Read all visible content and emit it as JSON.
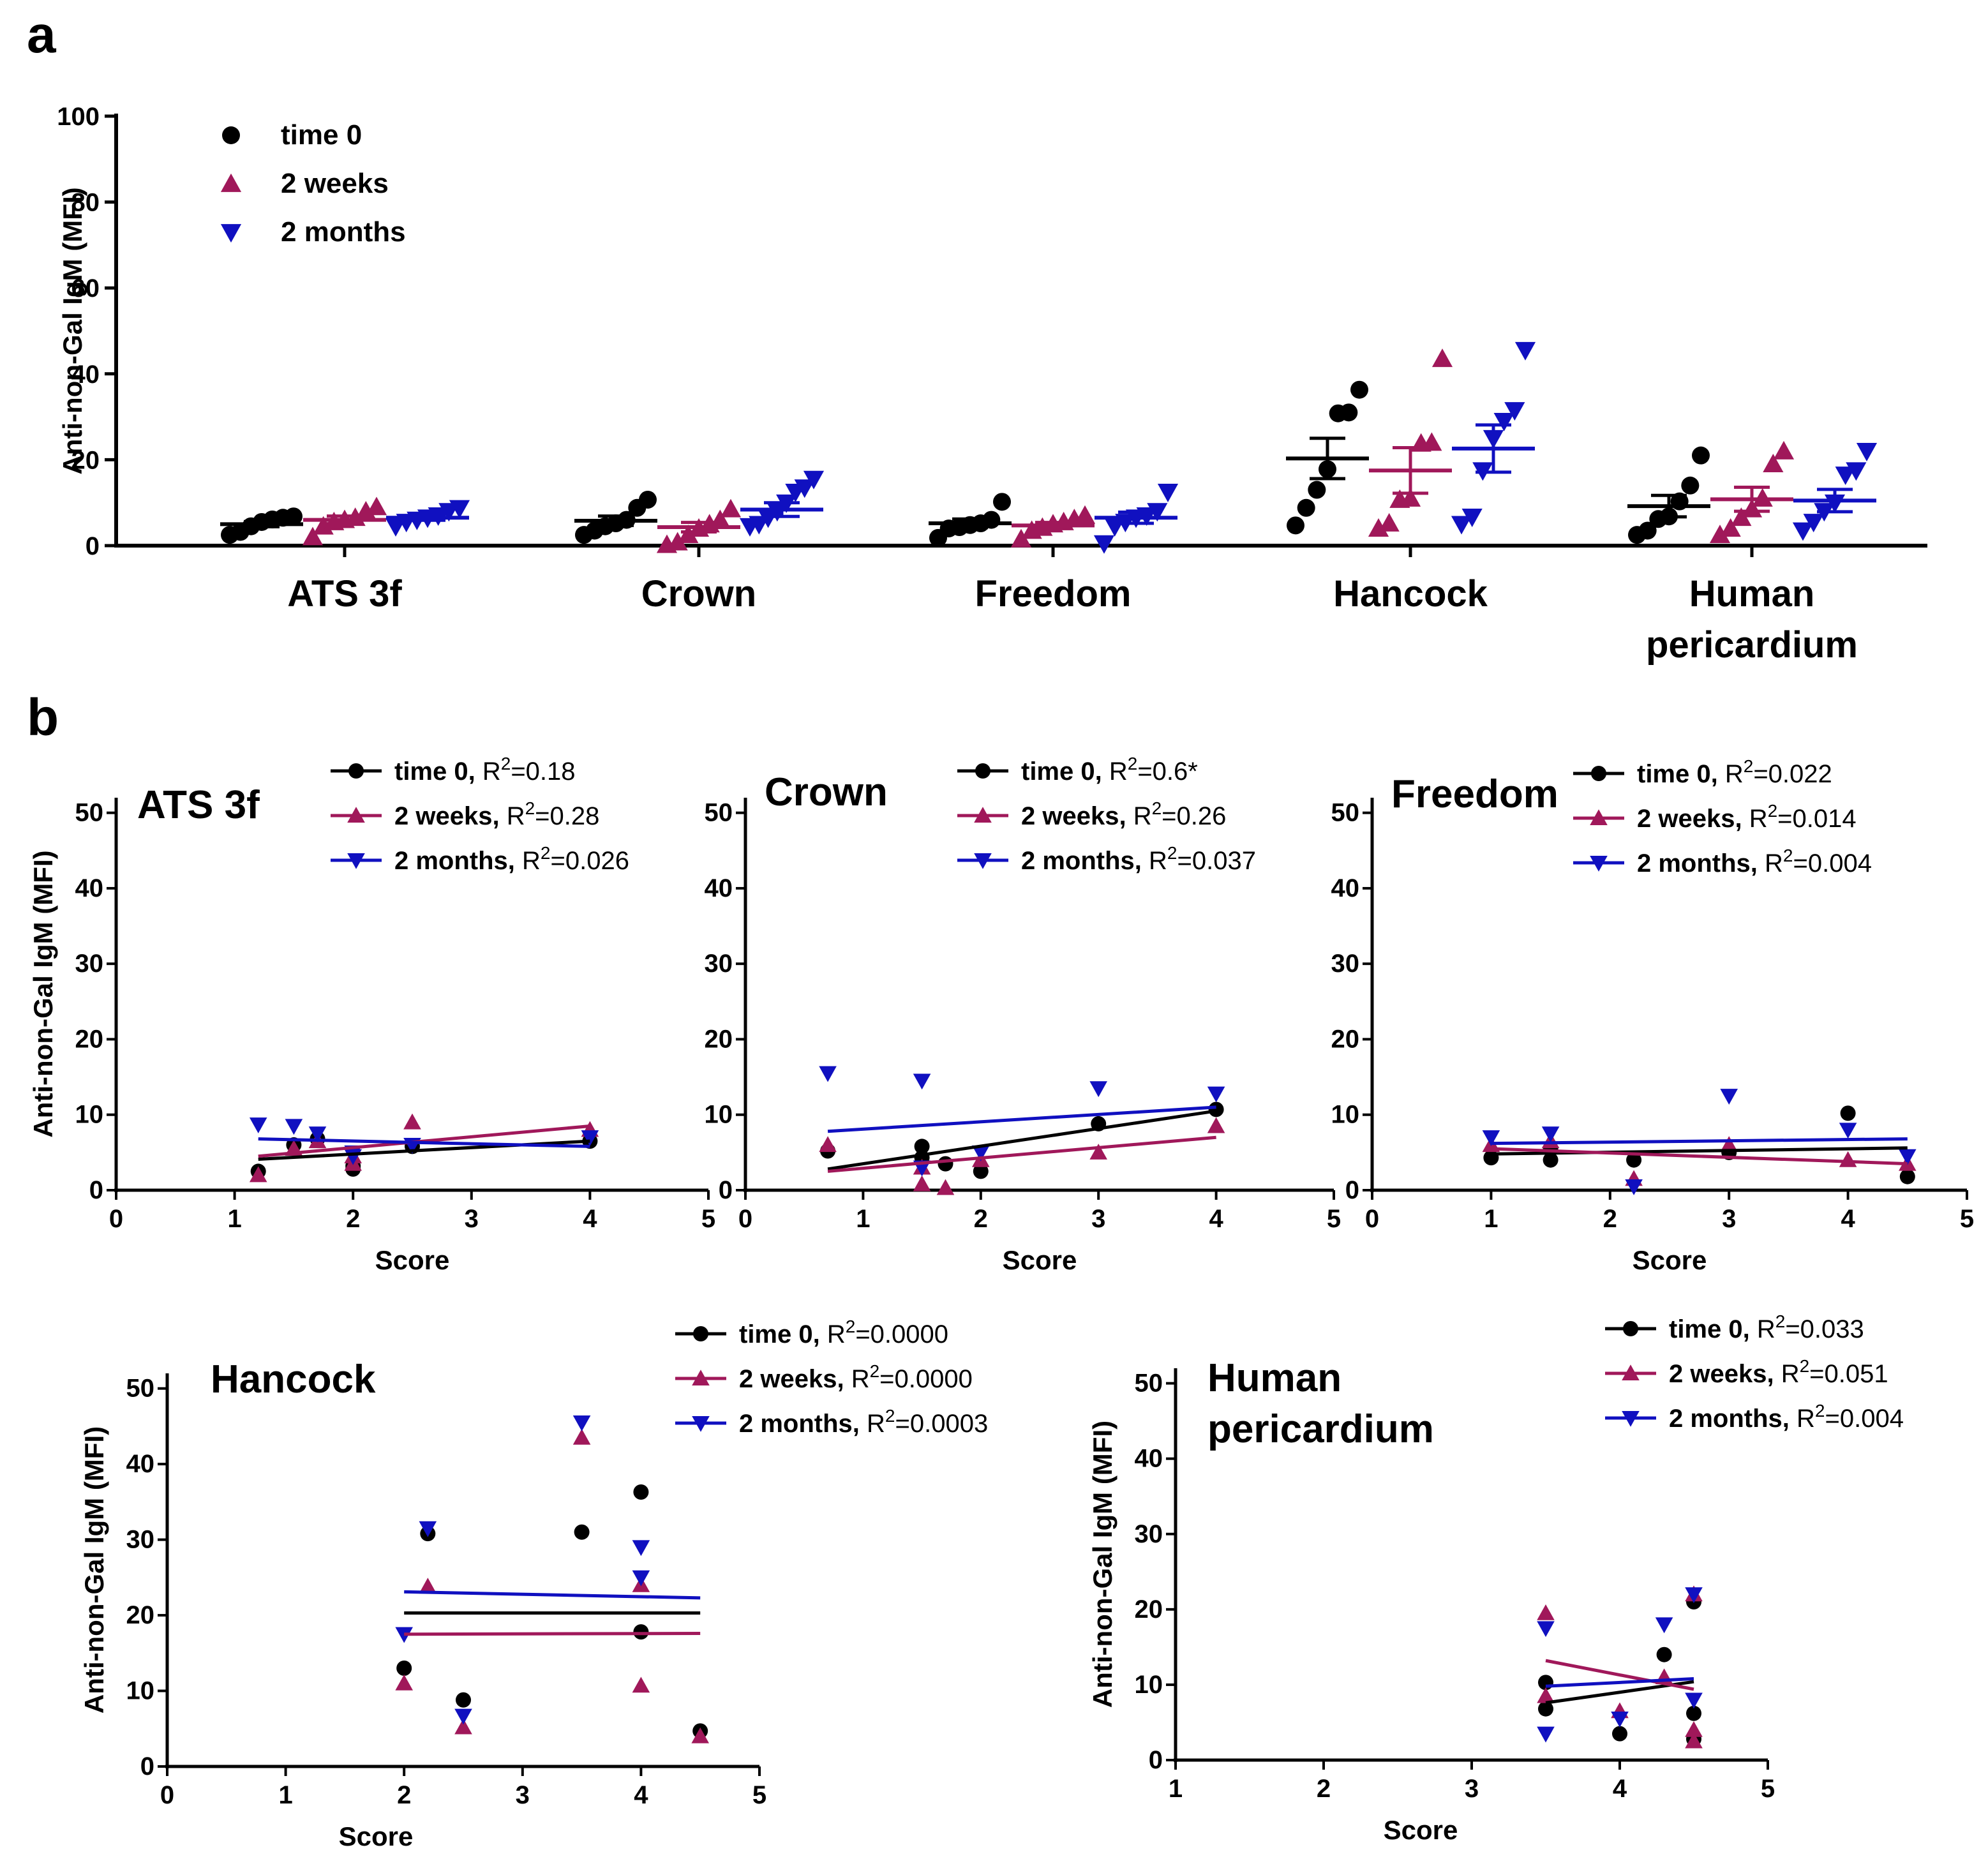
{
  "colors": {
    "time0": "#000000",
    "weeks2": "#a0185a",
    "months2": "#1010c0"
  },
  "panel_a": {
    "letter": "a",
    "legend": [
      {
        "label": "time 0",
        "marker": "circle",
        "color": "#000000"
      },
      {
        "label": "2 weeks",
        "marker": "triangle-up",
        "color": "#a0185a"
      },
      {
        "label": "2 months",
        "marker": "triangle-down",
        "color": "#1010c0"
      }
    ]
  },
  "panel_b": {
    "letter": "b"
  },
  "chart_data": [
    {
      "id": "a",
      "type": "scatter",
      "title": "",
      "ylabel": "Anti-non-Gal IgM (MFI)",
      "xlabel": "",
      "ylim": [
        0,
        100
      ],
      "yticks": [
        0,
        20,
        40,
        60,
        80,
        100
      ],
      "groups": [
        {
          "label_lines": [
            "ATS 3f"
          ],
          "series": [
            {
              "name": "time 0",
              "points": [
                2.5,
                3.2,
                4.5,
                5.5,
                6.1,
                6.5,
                6.8
              ],
              "mean": 5.0,
              "sem": 0.6
            },
            {
              "name": "2 weeks",
              "points": [
                2.0,
                4.5,
                5.5,
                6.0,
                6.5,
                8.0,
                9.0
              ],
              "mean": 6.0,
              "sem": 0.9
            },
            {
              "name": "2 months",
              "points": [
                4.5,
                5.5,
                6.0,
                6.5,
                7.0,
                8.0,
                8.7
              ],
              "mean": 6.5,
              "sem": 0.6
            }
          ]
        },
        {
          "label_lines": [
            "Crown"
          ],
          "series": [
            {
              "name": "time 0",
              "points": [
                2.5,
                3.5,
                4.5,
                5.2,
                6.0,
                8.8,
                10.7
              ],
              "mean": 5.8,
              "sem": 1.1
            },
            {
              "name": "2 weeks",
              "points": [
                0.2,
                0.8,
                2.5,
                4.0,
                5.0,
                6.0,
                8.5
              ],
              "mean": 4.3,
              "sem": 1.1
            },
            {
              "name": "2 months",
              "points": [
                4.5,
                5.0,
                6.5,
                8.0,
                10.0,
                12.5,
                13.5,
                15.5
              ],
              "mean": 8.4,
              "sem": 1.6
            }
          ]
        },
        {
          "label_lines": [
            "Freedom"
          ],
          "series": [
            {
              "name": "time 0",
              "points": [
                1.8,
                4.0,
                4.3,
                4.8,
                5.2,
                6.0,
                10.2
              ],
              "mean": 5.2,
              "sem": 1.0
            },
            {
              "name": "2 weeks",
              "points": [
                1.5,
                3.5,
                4.2,
                5.0,
                5.5,
                6.2,
                7.0
              ],
              "mean": 4.7,
              "sem": 0.7
            },
            {
              "name": "2 months",
              "points": [
                0.5,
                4.5,
                5.5,
                6.5,
                7.0,
                8.0,
                12.5
              ],
              "mean": 6.5,
              "sem": 1.3
            }
          ]
        },
        {
          "label_lines": [
            "Hancock"
          ],
          "series": [
            {
              "name": "time 0",
              "points": [
                4.7,
                8.8,
                13.0,
                17.8,
                30.8,
                31.0,
                36.3
              ],
              "mean": 20.3,
              "sem": 4.7
            },
            {
              "name": "2 weeks",
              "points": [
                4.0,
                5.2,
                10.7,
                11.0,
                23.8,
                24.0,
                43.5
              ],
              "mean": 17.5,
              "sem": 5.3
            },
            {
              "name": "2 months",
              "points": [
                5.0,
                6.7,
                17.5,
                25.0,
                29.0,
                31.5,
                45.5
              ],
              "mean": 22.6,
              "sem": 5.5
            }
          ]
        },
        {
          "label_lines": [
            "Human",
            "pericardium"
          ],
          "series": [
            {
              "name": "time 0",
              "points": [
                2.5,
                3.5,
                6.2,
                6.8,
                10.3,
                14.0,
                21.0
              ],
              "mean": 9.2,
              "sem": 2.5
            },
            {
              "name": "2 weeks",
              "points": [
                2.5,
                4.0,
                6.5,
                8.5,
                11.0,
                19.0,
                22.0
              ],
              "mean": 10.8,
              "sem": 2.8
            },
            {
              "name": "2 months",
              "points": [
                3.5,
                5.5,
                8.0,
                10.0,
                16.5,
                17.5,
                22.0
              ],
              "mean": 10.5,
              "sem": 2.6
            }
          ]
        }
      ]
    },
    {
      "id": "b-ats3f",
      "type": "scatter",
      "title_lines": [
        "ATS 3f"
      ],
      "xlabel": "Score",
      "ylabel": "Anti-non-Gal IgM (MFI)",
      "xlim": [
        0,
        5
      ],
      "ylim": [
        0,
        52
      ],
      "xticks": [
        0,
        1,
        2,
        3,
        4,
        5
      ],
      "yticks": [
        0,
        10,
        20,
        30,
        40,
        50
      ],
      "series": [
        {
          "name": "time 0",
          "r2": "R2=0.18",
          "r2_lead": "R",
          "r2_sup": "2",
          "r2_val": "=0.18",
          "x": [
            1.2,
            1.5,
            1.7,
            2.0,
            2.0,
            2.5,
            4.0
          ],
          "y": [
            2.5,
            6.0,
            6.8,
            3.2,
            2.8,
            5.8,
            6.5
          ],
          "fit": [
            [
              1.2,
              4.1
            ],
            [
              4.0,
              6.5
            ]
          ]
        },
        {
          "name": "2 weeks",
          "r2": "R2=0.28",
          "r2_lead": "R",
          "r2_sup": "2",
          "r2_val": "=0.28",
          "x": [
            1.2,
            1.5,
            1.7,
            2.0,
            2.0,
            2.5,
            4.0
          ],
          "y": [
            2.0,
            5.5,
            6.5,
            4.5,
            3.5,
            9.0,
            8.0
          ],
          "fit": [
            [
              1.2,
              4.5
            ],
            [
              4.0,
              8.5
            ]
          ]
        },
        {
          "name": "2 months",
          "r2": "R2=0.026",
          "r2_lead": "R",
          "r2_sup": "2",
          "r2_val": "=0.026",
          "x": [
            1.2,
            1.5,
            1.7,
            2.0,
            2.0,
            2.5,
            4.0
          ],
          "y": [
            8.7,
            8.5,
            7.5,
            5.0,
            4.5,
            6.0,
            7.0
          ],
          "fit": [
            [
              1.2,
              6.8
            ],
            [
              4.0,
              5.8
            ]
          ]
        }
      ]
    },
    {
      "id": "b-crown",
      "type": "scatter",
      "title_lines": [
        "Crown"
      ],
      "xlabel": "Score",
      "ylabel": "",
      "xlim": [
        0,
        5
      ],
      "ylim": [
        0,
        52
      ],
      "xticks": [
        0,
        1,
        2,
        3,
        4,
        5
      ],
      "yticks": [
        0,
        10,
        20,
        30,
        40,
        50
      ],
      "series": [
        {
          "name": "time 0",
          "r2": "R2=0.6*",
          "r2_lead": "R",
          "r2_sup": "2",
          "r2_val": "=0.6*",
          "x": [
            0.7,
            1.5,
            1.5,
            1.7,
            2.0,
            3.0,
            4.0
          ],
          "y": [
            5.2,
            5.8,
            4.3,
            3.5,
            2.5,
            8.8,
            10.7
          ],
          "fit": [
            [
              0.7,
              2.8
            ],
            [
              4.0,
              10.5
            ]
          ]
        },
        {
          "name": "2 weeks",
          "r2": "R2=0.26",
          "r2_lead": "R",
          "r2_sup": "2",
          "r2_val": "=0.26",
          "x": [
            0.7,
            1.5,
            1.5,
            1.7,
            2.0,
            3.0,
            4.0
          ],
          "y": [
            6.0,
            0.8,
            3.0,
            0.3,
            4.0,
            5.0,
            8.5
          ],
          "fit": [
            [
              0.7,
              2.5
            ],
            [
              4.0,
              7.0
            ]
          ]
        },
        {
          "name": "2 months",
          "r2": "R2=0.037",
          "r2_lead": "R",
          "r2_sup": "2",
          "r2_val": "=0.037",
          "x": [
            0.7,
            1.5,
            1.5,
            2.0,
            3.0,
            4.0
          ],
          "y": [
            15.5,
            14.5,
            3.0,
            5.0,
            13.5,
            12.8
          ],
          "fit": [
            [
              0.7,
              7.8
            ],
            [
              4.0,
              11.0
            ]
          ]
        }
      ]
    },
    {
      "id": "b-freedom",
      "type": "scatter",
      "title_lines": [
        "Freedom"
      ],
      "xlabel": "Score",
      "ylabel": "",
      "xlim": [
        0,
        5
      ],
      "ylim": [
        0,
        52
      ],
      "xticks": [
        0,
        1,
        2,
        3,
        4,
        5
      ],
      "yticks": [
        0,
        10,
        20,
        30,
        40,
        50
      ],
      "series": [
        {
          "name": "time 0",
          "r2": "R2=0.022",
          "r2_lead": "R",
          "r2_sup": "2",
          "r2_val": "=0.022",
          "x": [
            1.0,
            1.5,
            1.5,
            2.2,
            3.0,
            4.0,
            4.5
          ],
          "y": [
            4.3,
            4.0,
            5.5,
            4.0,
            5.0,
            10.2,
            1.8
          ],
          "fit": [
            [
              1.0,
              4.8
            ],
            [
              4.5,
              5.6
            ]
          ]
        },
        {
          "name": "2 weeks",
          "r2": "R2=0.014",
          "r2_lead": "R",
          "r2_sup": "2",
          "r2_val": "=0.014",
          "x": [
            1.0,
            1.5,
            2.2,
            3.0,
            4.0,
            4.5
          ],
          "y": [
            6.0,
            6.5,
            1.5,
            6.0,
            4.0,
            3.5
          ],
          "fit": [
            [
              1.0,
              5.5
            ],
            [
              4.5,
              3.5
            ]
          ]
        },
        {
          "name": "2 months",
          "r2": "R2=0.004",
          "r2_lead": "R",
          "r2_sup": "2",
          "r2_val": "=0.004",
          "x": [
            1.0,
            1.5,
            2.2,
            3.0,
            4.0,
            4.5
          ],
          "y": [
            7.0,
            7.5,
            0.5,
            12.5,
            8.0,
            4.5
          ],
          "fit": [
            [
              1.0,
              6.2
            ],
            [
              4.5,
              6.8
            ]
          ]
        }
      ]
    },
    {
      "id": "b-hancock",
      "type": "scatter",
      "title_lines": [
        "Hancock"
      ],
      "xlabel": "Score",
      "ylabel": "Anti-non-Gal IgM (MFI)",
      "xlim": [
        0,
        5
      ],
      "ylim": [
        0,
        52
      ],
      "xticks": [
        0,
        1,
        2,
        3,
        4,
        5
      ],
      "yticks": [
        0,
        10,
        20,
        30,
        40,
        50
      ],
      "series": [
        {
          "name": "time 0",
          "r2": "R2=0.0000",
          "r2_lead": "R",
          "r2_sup": "2",
          "r2_val": "=0.0000",
          "x": [
            2.0,
            2.2,
            2.5,
            3.5,
            4.0,
            4.0,
            4.5
          ],
          "y": [
            13.0,
            30.8,
            8.8,
            31.0,
            36.3,
            17.8,
            4.7
          ],
          "fit": [
            [
              2.0,
              20.3
            ],
            [
              4.5,
              20.3
            ]
          ]
        },
        {
          "name": "2 weeks",
          "r2": "R2=0.0000",
          "r2_lead": "R",
          "r2_sup": "2",
          "r2_val": "=0.0000",
          "x": [
            2.0,
            2.2,
            2.5,
            3.5,
            4.0,
            4.0,
            4.5
          ],
          "y": [
            11.0,
            23.8,
            5.2,
            43.5,
            24.0,
            10.7,
            4.0
          ],
          "fit": [
            [
              2.0,
              17.5
            ],
            [
              4.5,
              17.6
            ]
          ]
        },
        {
          "name": "2 months",
          "r2": "R2=0.0003",
          "r2_lead": "R",
          "r2_sup": "2",
          "r2_val": "=0.0003",
          "x": [
            2.0,
            2.2,
            2.5,
            3.5,
            4.0,
            4.0
          ],
          "y": [
            17.5,
            31.5,
            6.7,
            45.5,
            29.0,
            25.0
          ],
          "fit": [
            [
              2.0,
              23.1
            ],
            [
              4.5,
              22.3
            ]
          ]
        }
      ]
    },
    {
      "id": "b-human-pericardium",
      "type": "scatter",
      "title_lines": [
        "Human",
        "pericardium"
      ],
      "xlabel": "Score",
      "ylabel": "Anti-non-Gal IgM (MFI)",
      "xlim": [
        1,
        5
      ],
      "ylim": [
        0,
        52
      ],
      "xticks": [
        1,
        2,
        3,
        4,
        5
      ],
      "yticks": [
        0,
        10,
        20,
        30,
        40,
        50
      ],
      "series": [
        {
          "name": "time 0",
          "r2": "R2=0.033",
          "r2_lead": "R",
          "r2_sup": "2",
          "r2_val": "=0.033",
          "x": [
            3.5,
            3.5,
            4.0,
            4.3,
            4.5,
            4.5,
            4.5
          ],
          "y": [
            10.3,
            6.8,
            3.5,
            14.0,
            21.0,
            6.2,
            2.8
          ],
          "fit": [
            [
              3.5,
              7.6
            ],
            [
              4.5,
              10.4
            ]
          ]
        },
        {
          "name": "2 weeks",
          "r2": "R2=0.051",
          "r2_lead": "R",
          "r2_sup": "2",
          "r2_val": "=0.051",
          "x": [
            3.5,
            3.5,
            4.0,
            4.3,
            4.5,
            4.5,
            4.5
          ],
          "y": [
            19.5,
            8.5,
            6.5,
            11.0,
            22.0,
            4.0,
            2.5
          ],
          "fit": [
            [
              3.5,
              13.2
            ],
            [
              4.5,
              9.4
            ]
          ]
        },
        {
          "name": "2 months",
          "r2": "R2=0.004",
          "r2_lead": "R",
          "r2_sup": "2",
          "r2_val": "=0.004",
          "x": [
            3.5,
            3.5,
            4.0,
            4.3,
            4.5,
            4.5
          ],
          "y": [
            17.5,
            3.5,
            5.5,
            18.0,
            22.0,
            8.0
          ],
          "fit": [
            [
              3.5,
              9.8
            ],
            [
              4.5,
              10.8
            ]
          ]
        }
      ]
    }
  ]
}
